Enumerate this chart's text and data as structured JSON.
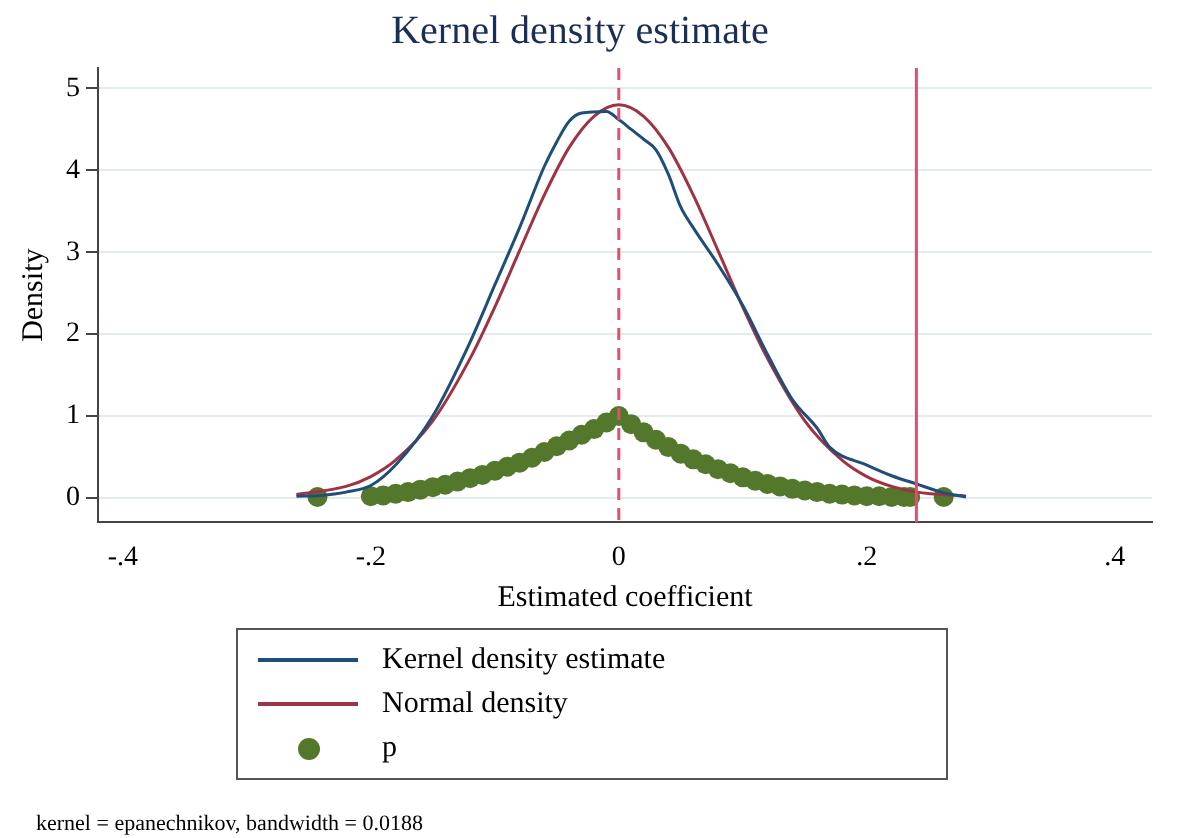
{
  "chart_data": {
    "type": "line",
    "title": "Kernel density estimate",
    "xlabel": "Estimated coefficient",
    "ylabel": "Density",
    "xlim": [
      -0.42,
      0.43
    ],
    "xticks": [
      {
        "value": -0.4,
        "label": "-.4"
      },
      {
        "value": -0.2,
        "label": "-.2"
      },
      0,
      {
        "value": 0.2,
        "label": ".2"
      },
      {
        "value": 0.4,
        "label": ".4"
      }
    ],
    "ylim": [
      -0.3,
      5.25
    ],
    "yticks": [
      0,
      1,
      2,
      3,
      4,
      5
    ],
    "grid": "y",
    "legend": "bottom",
    "series": [
      {
        "name": "Kernel density estimate",
        "color": "#1f4e79",
        "marker": "none",
        "x": [
          -0.26,
          -0.24,
          -0.22,
          -0.2,
          -0.18,
          -0.15,
          -0.12,
          -0.1,
          -0.08,
          -0.06,
          -0.05,
          -0.04,
          -0.03,
          -0.01,
          0,
          0.01,
          0.02,
          0.03,
          0.04,
          0.05,
          0.06,
          0.08,
          0.1,
          0.12,
          0.14,
          0.16,
          0.17,
          0.2,
          0.22,
          0.24,
          0.26,
          0.28
        ],
        "values": [
          0.02,
          0.03,
          0.07,
          0.15,
          0.4,
          1.0,
          1.9,
          2.6,
          3.3,
          4.05,
          4.35,
          4.6,
          4.7,
          4.72,
          4.62,
          4.5,
          4.38,
          4.25,
          3.95,
          3.55,
          3.3,
          2.85,
          2.35,
          1.75,
          1.2,
          0.85,
          0.62,
          0.4,
          0.27,
          0.17,
          0.07,
          0.01
        ]
      },
      {
        "name": "Normal density",
        "color": "#9e3344",
        "marker": "none",
        "x": [
          -0.26,
          -0.22,
          -0.2,
          -0.18,
          -0.15,
          -0.12,
          -0.1,
          -0.08,
          -0.06,
          -0.04,
          -0.02,
          0,
          0.02,
          0.04,
          0.06,
          0.08,
          0.1,
          0.12,
          0.15,
          0.18,
          0.2,
          0.22,
          0.24,
          0.28
        ],
        "values": [
          0.04,
          0.14,
          0.26,
          0.46,
          0.94,
          1.7,
          2.33,
          3.02,
          3.7,
          4.28,
          4.66,
          4.8,
          4.66,
          4.28,
          3.7,
          3.02,
          2.33,
          1.7,
          0.94,
          0.46,
          0.26,
          0.14,
          0.07,
          0.02
        ]
      },
      {
        "name": "p",
        "type": "scatter",
        "color": "#54782b",
        "marker": "circle",
        "x": [
          -0.243,
          -0.2,
          -0.19,
          -0.18,
          -0.17,
          -0.16,
          -0.15,
          -0.14,
          -0.13,
          -0.12,
          -0.11,
          -0.1,
          -0.09,
          -0.08,
          -0.07,
          -0.06,
          -0.05,
          -0.04,
          -0.03,
          -0.02,
          -0.01,
          0,
          0.01,
          0.02,
          0.03,
          0.04,
          0.05,
          0.06,
          0.07,
          0.08,
          0.09,
          0.1,
          0.11,
          0.12,
          0.13,
          0.14,
          0.15,
          0.16,
          0.17,
          0.18,
          0.19,
          0.2,
          0.21,
          0.22,
          0.23,
          0.235,
          0.262
        ],
        "values": [
          0.01,
          0.02,
          0.03,
          0.05,
          0.07,
          0.1,
          0.13,
          0.16,
          0.2,
          0.24,
          0.28,
          0.33,
          0.38,
          0.43,
          0.49,
          0.56,
          0.63,
          0.7,
          0.77,
          0.84,
          0.92,
          1,
          0.9,
          0.8,
          0.71,
          0.62,
          0.54,
          0.47,
          0.41,
          0.35,
          0.3,
          0.25,
          0.21,
          0.17,
          0.14,
          0.11,
          0.09,
          0.07,
          0.05,
          0.04,
          0.03,
          0.02,
          0.02,
          0.01,
          0.01,
          0.01,
          0.01
        ]
      }
    ],
    "ref_lines": [
      {
        "axis": "x",
        "value": 0,
        "color": "#d6546e",
        "line_style": "dashed"
      },
      {
        "axis": "x",
        "value": 0.24,
        "color": "#d6546e",
        "line_style": "solid"
      }
    ],
    "annotations": [
      "kernel = epanechnikov, bandwidth = 0.0188"
    ]
  }
}
